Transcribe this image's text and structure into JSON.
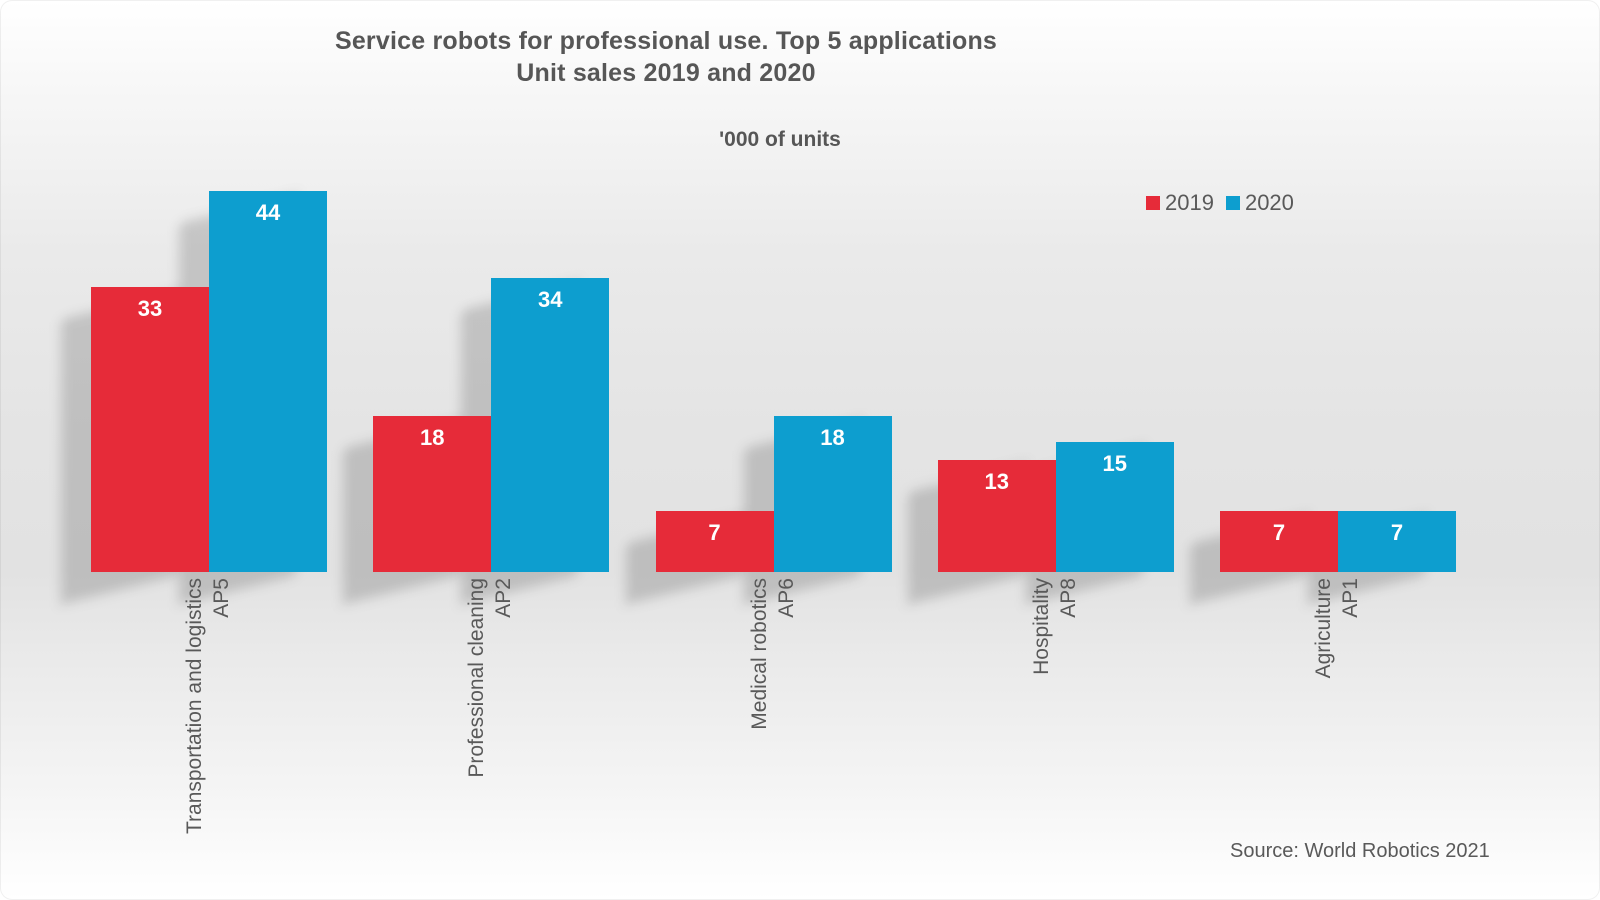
{
  "chart_data": {
    "type": "bar",
    "title": "Service robots for professional use. Top 5 applications",
    "subtitle": "Unit sales 2019 and 2020",
    "units_label": "'000 of units",
    "categories": [
      "Transportation and logistics",
      "Professional cleaning",
      "Medical robotics",
      "Hospitality",
      "Agriculture"
    ],
    "category_codes": [
      "AP5",
      "AP2",
      "AP6",
      "AP8",
      "AP1"
    ],
    "series": [
      {
        "name": "2019",
        "color": "#E62B39",
        "values": [
          33,
          18,
          7,
          13,
          7
        ]
      },
      {
        "name": "2020",
        "color": "#0D9ECF",
        "values": [
          44,
          34,
          18,
          15,
          7
        ]
      }
    ],
    "ylim": [
      0,
      45
    ],
    "grid": false,
    "axes_visible": false,
    "legend_position": "top-right",
    "value_labels": "inside-top, white bold",
    "text_color": "#595959",
    "source": "Source: World Robotics 2021"
  }
}
